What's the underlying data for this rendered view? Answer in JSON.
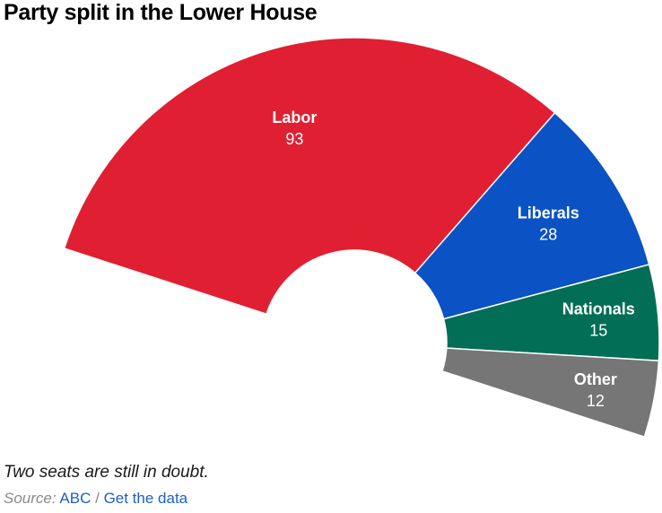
{
  "chart_data": {
    "type": "pie",
    "variant": "semicircle-donut",
    "title": "Party split in the Lower House",
    "categories": [
      "Labor",
      "Liberals",
      "Nationals",
      "Other"
    ],
    "values": [
      93,
      28,
      15,
      12
    ],
    "colors": [
      "#e01f32",
      "#0b52c4",
      "#026e55",
      "#767676"
    ],
    "legend": "none (labels on segments)"
  },
  "footer": {
    "note": "Two seats are still in doubt.",
    "source_prefix": "Source:",
    "source_link": "ABC",
    "separator": "/",
    "data_link": "Get the data"
  }
}
